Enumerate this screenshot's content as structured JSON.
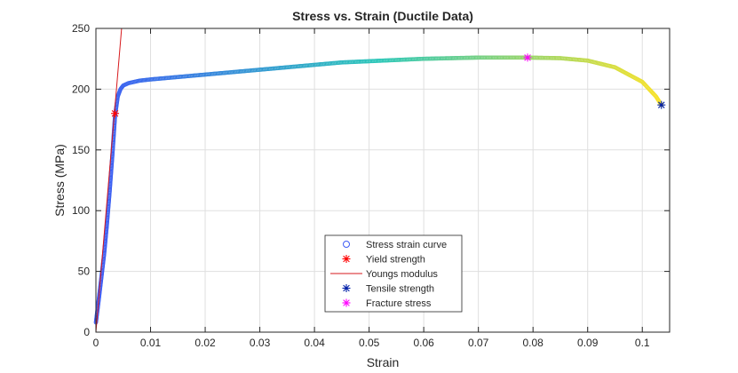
{
  "chart_data": {
    "type": "scatter",
    "title": "Stress vs. Strain (Ductile Data)",
    "xlabel": "Strain",
    "ylabel": "Stress (MPa)",
    "xlim": [
      0,
      0.105
    ],
    "ylim": [
      0,
      250
    ],
    "grid": true,
    "x_ticks": [
      "0",
      "0.01",
      "0.02",
      "0.03",
      "0.04",
      "0.05",
      "0.06",
      "0.07",
      "0.08",
      "0.09",
      "0.1"
    ],
    "y_ticks": [
      "0",
      "50",
      "100",
      "150",
      "200",
      "250"
    ],
    "legend_position": "bottom-center",
    "colors": {
      "curve_start": "#3e5bf5",
      "curve_mid": "#2dc7b9",
      "curve_end": "#f9e227",
      "yield": "#ff0000",
      "youngs": "#d7191c",
      "tensile": "#001fa8",
      "fracture": "#ff00ff"
    },
    "series": [
      {
        "name": "Stress strain curve",
        "marker": "circle",
        "points": [
          [
            0.0,
            8
          ],
          [
            0.0005,
            26
          ],
          [
            0.001,
            45
          ],
          [
            0.0015,
            64
          ],
          [
            0.002,
            88
          ],
          [
            0.0025,
            115
          ],
          [
            0.003,
            145
          ],
          [
            0.0035,
            178
          ],
          [
            0.004,
            194
          ],
          [
            0.0045,
            200
          ],
          [
            0.005,
            203
          ],
          [
            0.006,
            205
          ],
          [
            0.008,
            207
          ],
          [
            0.01,
            208
          ],
          [
            0.015,
            210
          ],
          [
            0.02,
            212
          ],
          [
            0.025,
            214
          ],
          [
            0.03,
            216
          ],
          [
            0.035,
            218
          ],
          [
            0.04,
            220
          ],
          [
            0.045,
            222
          ],
          [
            0.05,
            223
          ],
          [
            0.055,
            224
          ],
          [
            0.06,
            225
          ],
          [
            0.065,
            225.5
          ],
          [
            0.07,
            226
          ],
          [
            0.075,
            226
          ],
          [
            0.079,
            226
          ],
          [
            0.085,
            225.5
          ],
          [
            0.09,
            223.5
          ],
          [
            0.095,
            218
          ],
          [
            0.1,
            206
          ],
          [
            0.1025,
            194
          ],
          [
            0.1035,
            187
          ]
        ]
      },
      {
        "name": "Yield strength",
        "marker": "star",
        "points": [
          [
            0.0035,
            180
          ]
        ]
      },
      {
        "name": "Youngs modulus",
        "marker": "line",
        "points": [
          [
            0.0,
            0
          ],
          [
            0.0047,
            250
          ]
        ]
      },
      {
        "name": "Tensile strength",
        "marker": "star",
        "points": [
          [
            0.1035,
            187
          ]
        ]
      },
      {
        "name": "Fracture stress",
        "marker": "star",
        "points": [
          [
            0.079,
            226
          ]
        ]
      }
    ]
  }
}
